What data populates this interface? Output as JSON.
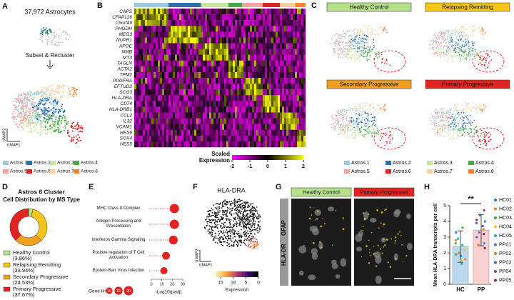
{
  "panel_a": {
    "letter": "A",
    "title": "37,972 Astrocytes",
    "caption": "Subset & Recluster",
    "y_axis": "UMAP2",
    "x_axis": "UMAP1"
  },
  "cluster_legend": {
    "names": [
      "Astros.1",
      "Astros.2",
      "Astros.3",
      "Astros.4",
      "Astros.5",
      "Astros.6",
      "Astros.7",
      "Astros.8"
    ],
    "colors": [
      "#9ecae1",
      "#2f6fb0",
      "#c7e6a0",
      "#4aa84a",
      "#f4a6a0",
      "#d62728",
      "#fdd0a2",
      "#f58231"
    ]
  },
  "panel_b": {
    "letter": "B",
    "genes": [
      "CAPS",
      "CFAP126",
      "C5orf49",
      "PHGDH",
      "MEG3",
      "NUPR1",
      "APOE",
      "NMB",
      "MT3",
      "TAGLN",
      "ACTA2",
      "TPM2",
      "PDGFRA",
      "EFTUD2",
      "SCG3",
      "HLA-DRA",
      "CD74",
      "HLA-DRB1",
      "CCL2",
      "IL32",
      "VCAM1",
      "HES6",
      "SOX4",
      "HES5"
    ],
    "colorbar": {
      "label": "Scaled Expression",
      "lim": [
        -2,
        2
      ],
      "ticks": [
        -2,
        -1,
        0,
        1,
        2
      ],
      "colors": [
        "#ff00ff",
        "#000000",
        "#ffff00"
      ]
    }
  },
  "panel_c": {
    "letter": "C",
    "groups": [
      "Healthy Control",
      "Relapsing Remitting",
      "Secondary Progressive",
      "Primary Progressive"
    ],
    "colors": [
      "#b6e08a",
      "#f5c518",
      "#f0a020",
      "#e32222"
    ]
  },
  "panel_f": {
    "letter": "F",
    "title": "HLA-DRA",
    "y_axis": "UMAP2",
    "x_axis": "UMAP1",
    "colorbar": {
      "label": "Expression",
      "lim": [
        17,
        0
      ],
      "ticks": [
        15,
        10,
        5,
        0
      ],
      "colors": [
        "#fcf3b0",
        "#f5a23c",
        "#b53a6a",
        "#3b0f6e",
        "#000000"
      ]
    }
  },
  "panel_g": {
    "letter": "G",
    "groups": [
      "Healthy Control",
      "Primary Progressive"
    ],
    "colors": [
      "#b6e08a",
      "#e32222"
    ],
    "stains": [
      {
        "name": "HLA-DR",
        "color": "#39c8c8"
      },
      {
        "name": "GFAP",
        "color": "#f0d020"
      }
    ]
  },
  "chart_data": [
    {
      "type": "pie",
      "panel_label": "D",
      "title": "Astros 6 Cluster",
      "subtitle": "Cell Distribution by MS Type",
      "categories": [
        "Healthy Control",
        "Relapsing Remitting",
        "Secondary Progressive",
        "Primary Progressive"
      ],
      "values": [
        3.86,
        33.94,
        24.53,
        37.67
      ],
      "value_labels": [
        "(3.86%)",
        "(33.94%)",
        "(24.53%)",
        "(37.67%)"
      ],
      "colors": [
        "#b6e08a",
        "#f5c518",
        "#f0a020",
        "#e32222"
      ]
    },
    {
      "type": "dot",
      "panel_label": "E",
      "categories": [
        "MHC Class II Complex",
        "Antigen Processing and Presentation",
        "Interferon Gamma Signaling",
        "Positive regulation of T Cell Activation",
        "Epstein-Barr Virus Infection"
      ],
      "values": [
        22,
        22,
        21,
        14,
        12
      ],
      "sizes": [
        20,
        20,
        18,
        14,
        12
      ],
      "color": "#e32222",
      "xlim": [
        0,
        30
      ],
      "xticks": [
        0,
        10,
        20,
        30
      ],
      "xlabel": "-Log10(padj)",
      "size_legend": {
        "title": "Gene Hits",
        "values": [
          10,
          15,
          20
        ]
      }
    },
    {
      "type": "bar",
      "panel_label": "H",
      "categories": [
        "HC",
        "PP"
      ],
      "values": [
        2.4,
        3.45
      ],
      "errors": [
        1.0,
        1.0
      ],
      "colors": [
        "#bcd9f0",
        "#f9d0d0"
      ],
      "ylim": [
        0,
        5
      ],
      "yticks": [
        0,
        1,
        2,
        3,
        4,
        5
      ],
      "ylabel": "Mean HLA-DRA transcripts per cell",
      "significance": "**",
      "series": [
        {
          "name": "HC01",
          "color": "#1f6fd0",
          "values": [
            [
              1.8,
              3.3
            ],
            null
          ]
        },
        {
          "name": "HC02",
          "color": "#f08020",
          "values": [
            [
              1.6,
              2.0,
              2.8
            ],
            null
          ]
        },
        {
          "name": "HC03",
          "color": "#30b040",
          "values": [
            [
              3.6,
              2.6,
              1.9
            ],
            null
          ]
        },
        {
          "name": "HC04",
          "color": "#f0c020",
          "values": [
            [
              2.2,
              1.5
            ],
            null
          ]
        },
        {
          "name": "HC05",
          "color": "#20b0b0",
          "values": [
            [
              2.5,
              1.3,
              2.9
            ],
            null
          ]
        },
        {
          "name": "PP01",
          "color": "#3080f0",
          "values": [
            null,
            [
              3.3,
              4.0,
              2.6
            ]
          ]
        },
        {
          "name": "PP02",
          "color": "#e07b30",
          "values": [
            null,
            [
              3.5,
              2.5
            ]
          ]
        },
        {
          "name": "PP03",
          "color": "#4060d0",
          "values": [
            null,
            [
              4.4,
              3.0,
              3.9
            ]
          ]
        },
        {
          "name": "PP04",
          "color": "#8040a0",
          "values": [
            null,
            [
              4.7,
              3.7
            ]
          ]
        },
        {
          "name": "PP05",
          "color": "#a02040",
          "values": [
            null,
            [
              2.3,
              3.2,
              4.1
            ]
          ]
        }
      ]
    }
  ]
}
